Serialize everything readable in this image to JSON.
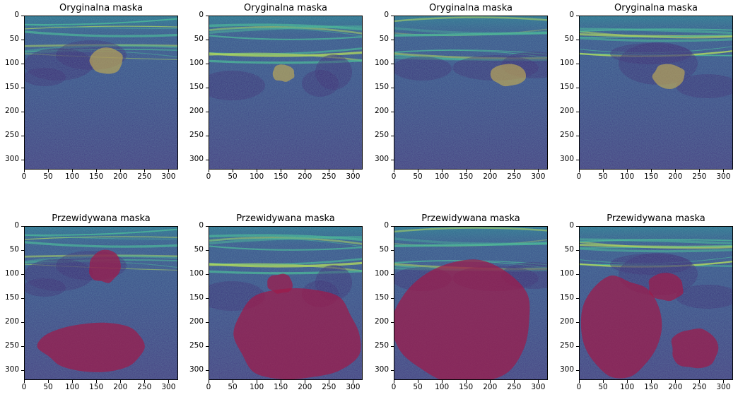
{
  "figure": {
    "rows": [
      {
        "title": "Oryginalna maska",
        "overlay_color": "#c8b050",
        "panels": [
          {
            "image": "ultrasound-nerve-scan-1",
            "masks": [
              {
                "cx": 0.53,
                "cy": 0.29,
                "rx": 0.11,
                "ry": 0.085,
                "shape": "blob"
              }
            ]
          },
          {
            "image": "ultrasound-nerve-scan-2",
            "masks": [
              {
                "cx": 0.48,
                "cy": 0.37,
                "rx": 0.075,
                "ry": 0.055,
                "shape": "blob"
              }
            ]
          },
          {
            "image": "ultrasound-nerve-scan-3",
            "masks": [
              {
                "cx": 0.74,
                "cy": 0.38,
                "rx": 0.12,
                "ry": 0.075,
                "shape": "blob"
              }
            ]
          },
          {
            "image": "ultrasound-nerve-scan-4",
            "masks": [
              {
                "cx": 0.58,
                "cy": 0.39,
                "rx": 0.105,
                "ry": 0.085,
                "shape": "blob"
              }
            ]
          }
        ]
      },
      {
        "title": "Przewidywana maska",
        "overlay_color": "#9e1b4a",
        "panels": [
          {
            "image": "ultrasound-nerve-scan-1",
            "masks": [
              {
                "cx": 0.52,
                "cy": 0.26,
                "rx": 0.11,
                "ry": 0.105,
                "shape": "blob"
              },
              {
                "cx": 0.45,
                "cy": 0.78,
                "rx": 0.35,
                "ry": 0.16,
                "shape": "blob"
              }
            ]
          },
          {
            "image": "ultrasound-nerve-scan-2",
            "masks": [
              {
                "cx": 0.46,
                "cy": 0.37,
                "rx": 0.085,
                "ry": 0.065,
                "shape": "blob"
              },
              {
                "cx": 0.57,
                "cy": 0.7,
                "rx": 0.43,
                "ry": 0.31,
                "shape": "blob"
              }
            ]
          },
          {
            "image": "ultrasound-nerve-scan-3",
            "masks": [
              {
                "cx": 0.45,
                "cy": 0.62,
                "rx": 0.45,
                "ry": 0.42,
                "shape": "blob"
              }
            ]
          },
          {
            "image": "ultrasound-nerve-scan-4",
            "masks": [
              {
                "cx": 0.56,
                "cy": 0.39,
                "rx": 0.115,
                "ry": 0.095,
                "shape": "blob"
              },
              {
                "cx": 0.27,
                "cy": 0.65,
                "rx": 0.28,
                "ry": 0.33,
                "shape": "blob"
              },
              {
                "cx": 0.75,
                "cy": 0.79,
                "rx": 0.16,
                "ry": 0.13,
                "shape": "blob"
              }
            ]
          }
        ]
      }
    ],
    "xticks": [
      "0",
      "50",
      "100",
      "150",
      "200",
      "250",
      "300"
    ],
    "yticks": [
      "0",
      "50",
      "100",
      "150",
      "200",
      "250",
      "300"
    ],
    "axis_max": 320,
    "colormap": "viridis"
  }
}
